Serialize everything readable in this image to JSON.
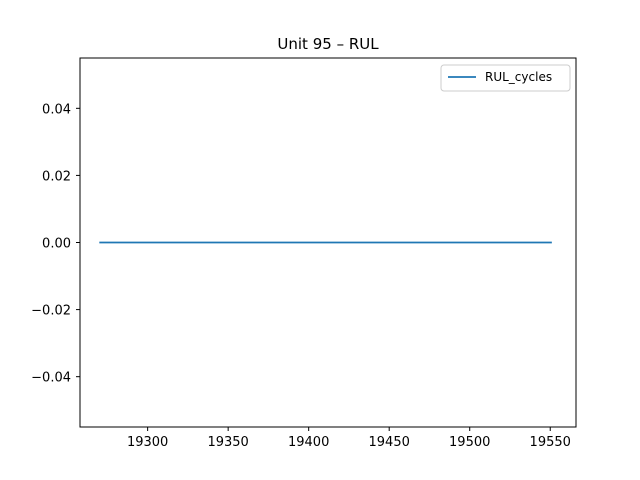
{
  "chart_data": {
    "type": "line",
    "title": "Unit 95  –  RUL",
    "xlabel": "",
    "ylabel": "",
    "xlim": [
      19258,
      19566
    ],
    "ylim": [
      -0.055,
      0.055
    ],
    "x_ticks": [
      19300,
      19350,
      19400,
      19450,
      19500,
      19550
    ],
    "y_ticks": [
      -0.04,
      -0.02,
      0.0,
      0.02,
      0.04
    ],
    "x_tick_labels": [
      "19300",
      "19350",
      "19400",
      "19450",
      "19500",
      "19550"
    ],
    "y_tick_labels": [
      "−0.04",
      "−0.02",
      "0.00",
      "0.02",
      "0.04"
    ],
    "legend_position": "top-right",
    "grid": false,
    "series": [
      {
        "name": "RUL_cycles",
        "color": "#1f77b4",
        "x": [
          19270,
          19551
        ],
        "y": [
          0,
          0
        ]
      }
    ]
  }
}
